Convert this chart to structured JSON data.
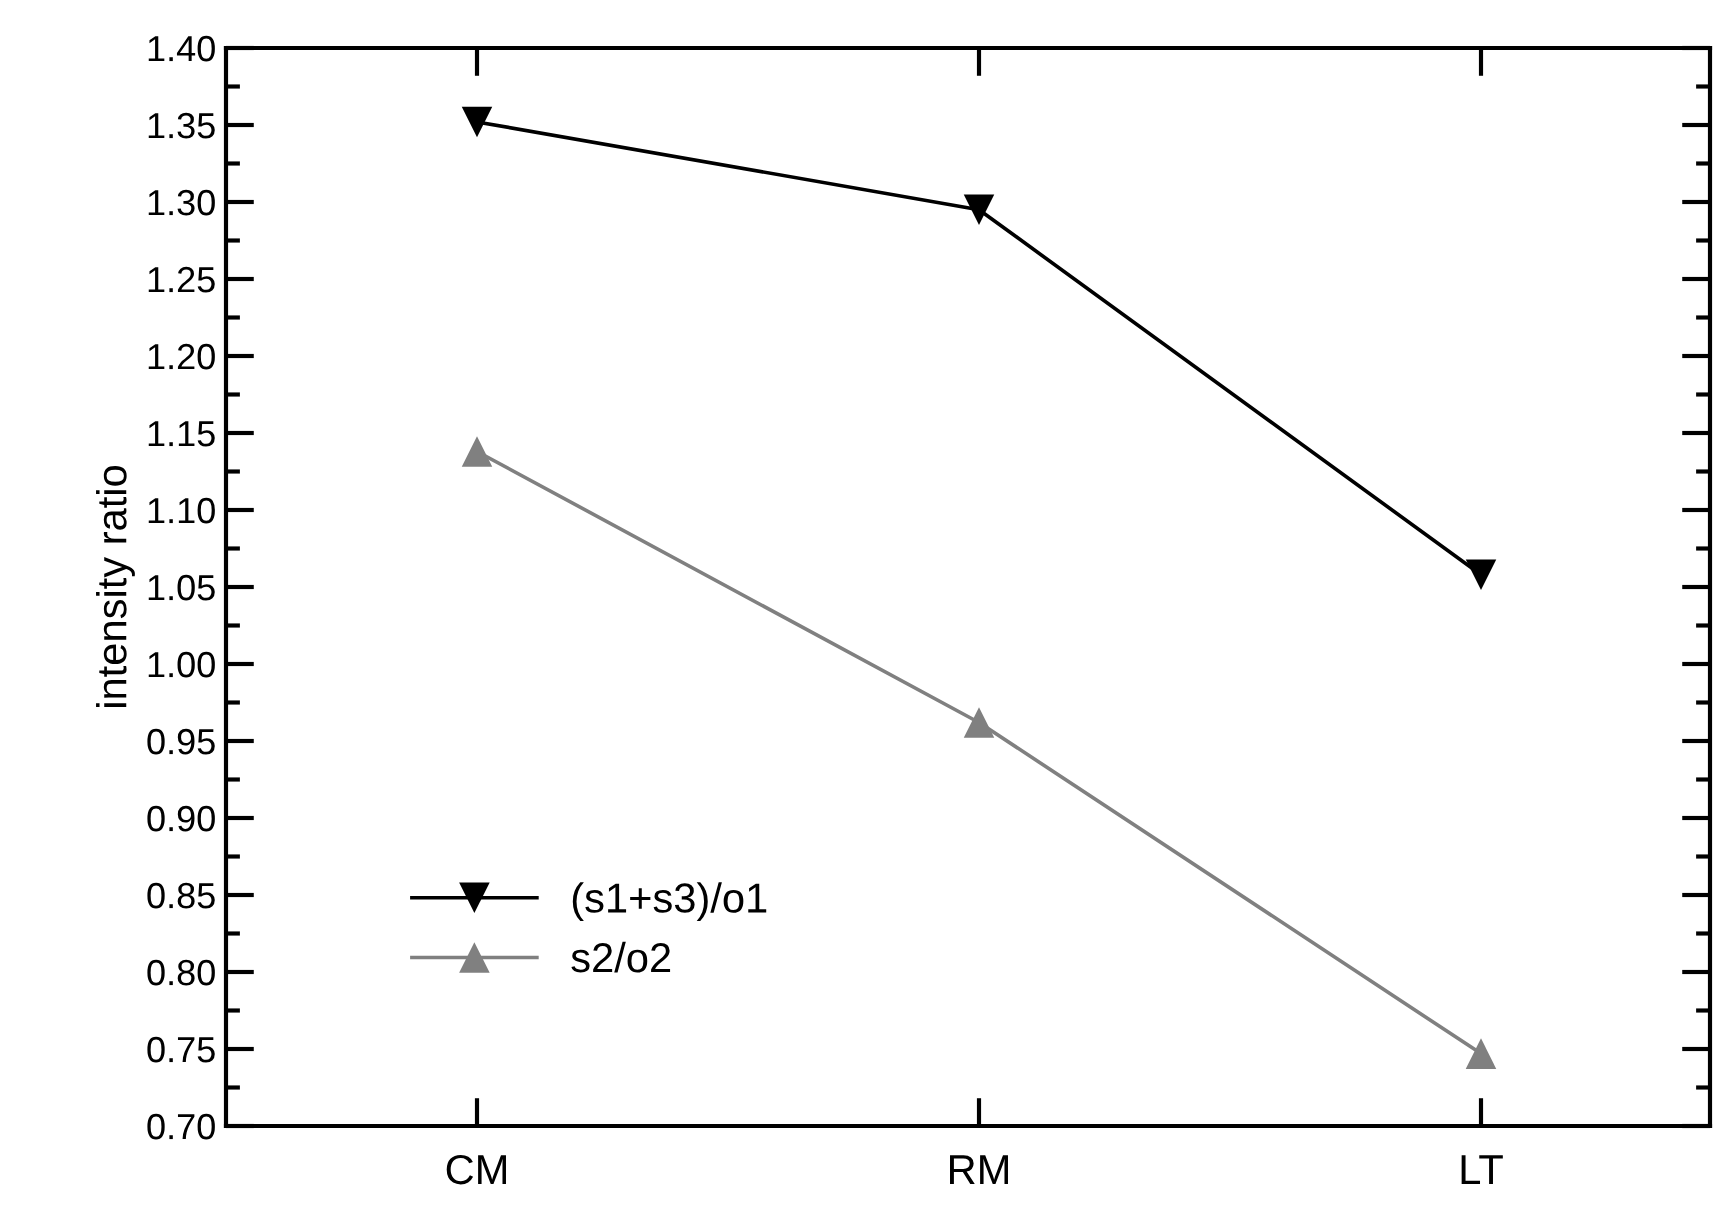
{
  "chart_data": {
    "type": "line",
    "ylabel": "intensity ratio",
    "categories": [
      "CM",
      "RM",
      "LT"
    ],
    "series": [
      {
        "name": "(s1+s3)/o1",
        "color": "#000000",
        "marker": "triangle_down",
        "values": [
          1.352,
          1.295,
          1.058
        ]
      },
      {
        "name": "s2/o2",
        "color": "#808080",
        "marker": "triangle",
        "values": [
          1.138,
          0.962,
          0.747
        ]
      }
    ],
    "ylim": [
      0.7,
      1.4
    ],
    "yticks": [
      {
        "value": 0.7,
        "label": "0.70"
      },
      {
        "value": 0.75,
        "label": "0.75"
      },
      {
        "value": 0.8,
        "label": "0.80"
      },
      {
        "value": 0.85,
        "label": "0.85"
      },
      {
        "value": 0.9,
        "label": "0.90"
      },
      {
        "value": 0.95,
        "label": "0.95"
      },
      {
        "value": 1.0,
        "label": "1.00"
      },
      {
        "value": 1.05,
        "label": "1.05"
      },
      {
        "value": 1.1,
        "label": "1.10"
      },
      {
        "value": 1.15,
        "label": "1.15"
      },
      {
        "value": 1.2,
        "label": "1.20"
      },
      {
        "value": 1.25,
        "label": "1.25"
      },
      {
        "value": 1.3,
        "label": "1.30"
      },
      {
        "value": 1.35,
        "label": "1.35"
      },
      {
        "value": 1.4,
        "label": "1.40"
      }
    ],
    "grid": false,
    "legend": "bottom left",
    "line_style": "solid"
  }
}
